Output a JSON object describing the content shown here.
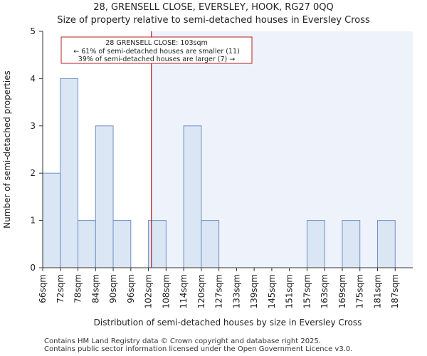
{
  "title_line1": "28, GRENSELL CLOSE, EVERSLEY, HOOK, RG27 0QQ",
  "title_line2": "Size of property relative to semi-detached houses in Eversley Cross",
  "footer_line1": "Contains HM Land Registry data © Crown copyright and database right 2025.",
  "footer_line2": "Contains public sector information licensed under the Open Government Licence v3.0.",
  "colors": {
    "bar_fill": "#dbe6f5",
    "bar_stroke": "#6f8fc4",
    "highlight_bg": "#eef2fb",
    "marker_line": "#b22222",
    "annotation_border": "#b22222"
  },
  "chart_data": {
    "type": "bar",
    "title": "Size of property relative to semi-detached houses in Eversley Cross",
    "xlabel": "Distribution of semi-detached houses by size in Eversley Cross",
    "ylabel": "Number of semi-detached properties",
    "categories": [
      "66sqm",
      "72sqm",
      "78sqm",
      "84sqm",
      "90sqm",
      "96sqm",
      "102sqm",
      "108sqm",
      "114sqm",
      "120sqm",
      "127sqm",
      "133sqm",
      "139sqm",
      "145sqm",
      "151sqm",
      "157sqm",
      "163sqm",
      "169sqm",
      "175sqm",
      "181sqm",
      "187sqm"
    ],
    "values": [
      2,
      4,
      1,
      3,
      1,
      0,
      1,
      0,
      3,
      1,
      0,
      0,
      0,
      0,
      0,
      1,
      0,
      1,
      0,
      1,
      0
    ],
    "ylim": [
      0,
      5
    ],
    "yticks": [
      0,
      1,
      2,
      3,
      4,
      5
    ],
    "marker_value_sqm": 103,
    "annotation": {
      "line1": "28 GRENSELL CLOSE: 103sqm",
      "line2": "← 61% of semi-detached houses are smaller (11)",
      "line3": "39% of semi-detached houses are larger (7) →"
    }
  }
}
